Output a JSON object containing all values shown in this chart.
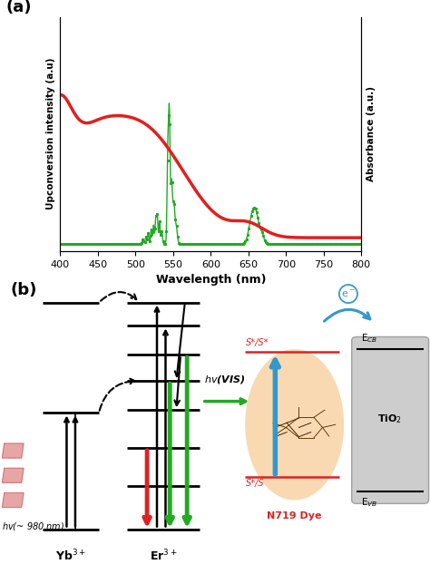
{
  "panel_a": {
    "xlabel": "Wavelength (nm)",
    "ylabel_left": "Upconversion intensity (a.u)",
    "ylabel_right": "Absorbance (a.u.)",
    "xlim": [
      400,
      800
    ],
    "xticklabels": [
      "400",
      "450",
      "500",
      "550",
      "600",
      "650",
      "700",
      "750",
      "800"
    ],
    "xticks": [
      400,
      450,
      500,
      550,
      600,
      650,
      700,
      750,
      800
    ],
    "red_color": "#e02020",
    "green_color": "#22aa22",
    "label_a": "(a)"
  },
  "panel_b": {
    "label_b": "(b)",
    "yb_label": "Yb$^{3+}$",
    "er_label": "Er$^{3+}$",
    "hv_980": "$hv$(~ 980 nm)",
    "hv_vis": "$hv$(VIS)",
    "n719_label": "N719 Dye",
    "tio2_label": "TiO$_2$",
    "ecb_label": "E$_{CB}$",
    "evb_label": "E$_{VB}$",
    "s_star_star_label": "S*/S*",
    "s_star_label": "S*/S",
    "e_minus": "e$^-$",
    "black_color": "#000000",
    "red_color": "#dd2222",
    "green_color": "#22aa22",
    "blue_color": "#3399cc",
    "gray_color": "#c8c8c8",
    "orange_ellipse_color": "#f0a040"
  }
}
